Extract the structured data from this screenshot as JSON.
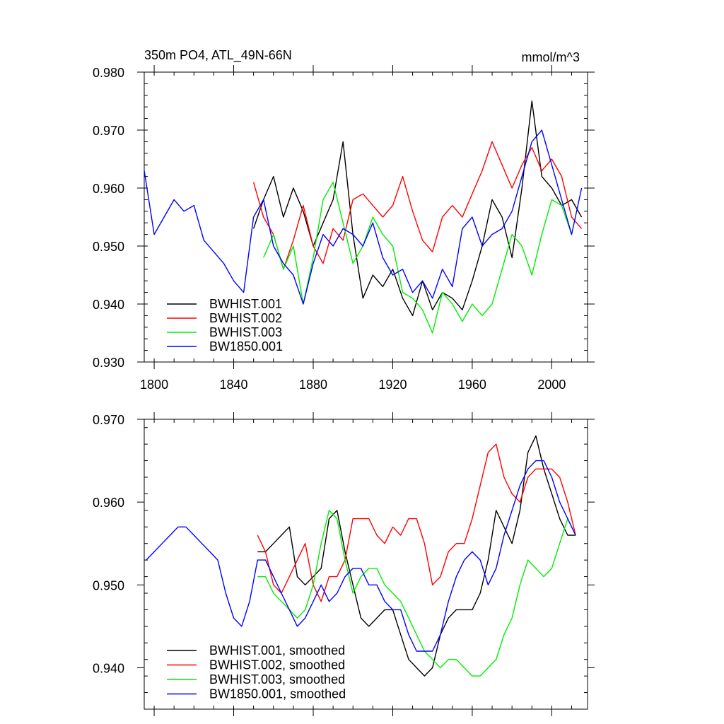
{
  "chart_data": [
    {
      "type": "line",
      "title": "350m PO4, ATL_49N-66N",
      "units": "mmol/m^3",
      "xlabel": "",
      "ylabel": "",
      "xlim": [
        1795,
        2018
      ],
      "ylim": [
        0.93,
        0.98
      ],
      "xticks": [
        1800,
        1840,
        1880,
        1920,
        1960,
        2000
      ],
      "xtick_labels": [
        "1800",
        "1840",
        "1880",
        "1920",
        "1960",
        "2000"
      ],
      "yticks": [
        0.93,
        0.94,
        0.95,
        0.96,
        0.97,
        0.98
      ],
      "ytick_labels": [
        "0.930",
        "0.940",
        "0.950",
        "0.960",
        "0.970",
        "0.980"
      ],
      "legend_position": "bottom-left",
      "series": [
        {
          "name": "BWHIST.001",
          "color": "#000000",
          "x": [
            1850,
            1855,
            1860,
            1865,
            1870,
            1875,
            1880,
            1885,
            1890,
            1895,
            1900,
            1905,
            1910,
            1915,
            1920,
            1925,
            1930,
            1935,
            1940,
            1945,
            1950,
            1955,
            1960,
            1965,
            1970,
            1975,
            1980,
            1985,
            1990,
            1995,
            2000,
            2005,
            2010,
            2015
          ],
          "y": [
            0.953,
            0.958,
            0.962,
            0.955,
            0.96,
            0.956,
            0.95,
            0.954,
            0.958,
            0.968,
            0.952,
            0.941,
            0.945,
            0.943,
            0.946,
            0.941,
            0.938,
            0.944,
            0.939,
            0.942,
            0.941,
            0.939,
            0.944,
            0.95,
            0.958,
            0.955,
            0.948,
            0.96,
            0.975,
            0.962,
            0.96,
            0.957,
            0.958,
            0.955
          ]
        },
        {
          "name": "BWHIST.002",
          "color": "#ff0000",
          "x": [
            1850,
            1855,
            1860,
            1865,
            1870,
            1875,
            1880,
            1885,
            1890,
            1895,
            1900,
            1905,
            1910,
            1915,
            1920,
            1925,
            1930,
            1935,
            1940,
            1945,
            1950,
            1955,
            1960,
            1965,
            1970,
            1975,
            1980,
            1985,
            1990,
            1995,
            2000,
            2005,
            2010,
            2015
          ],
          "y": [
            0.961,
            0.955,
            0.952,
            0.946,
            0.951,
            0.957,
            0.95,
            0.947,
            0.953,
            0.951,
            0.958,
            0.959,
            0.957,
            0.955,
            0.957,
            0.962,
            0.956,
            0.951,
            0.949,
            0.955,
            0.957,
            0.955,
            0.959,
            0.963,
            0.968,
            0.964,
            0.96,
            0.964,
            0.967,
            0.963,
            0.965,
            0.962,
            0.955,
            0.953
          ]
        },
        {
          "name": "BWHIST.003",
          "color": "#00ee00",
          "x": [
            1855,
            1860,
            1865,
            1870,
            1875,
            1880,
            1885,
            1890,
            1895,
            1900,
            1905,
            1910,
            1915,
            1920,
            1925,
            1930,
            1935,
            1940,
            1945,
            1950,
            1955,
            1960,
            1965,
            1970,
            1975,
            1980,
            1985,
            1990,
            1995,
            2000,
            2005,
            2010
          ],
          "y": [
            0.948,
            0.952,
            0.946,
            0.95,
            0.94,
            0.948,
            0.958,
            0.961,
            0.954,
            0.947,
            0.95,
            0.955,
            0.952,
            0.95,
            0.942,
            0.941,
            0.939,
            0.935,
            0.942,
            0.94,
            0.937,
            0.94,
            0.938,
            0.94,
            0.946,
            0.952,
            0.95,
            0.945,
            0.952,
            0.958,
            0.957,
            0.952
          ]
        },
        {
          "name": "BW1850.001",
          "color": "#0000ff",
          "x": [
            1795,
            1800,
            1805,
            1810,
            1815,
            1820,
            1825,
            1830,
            1835,
            1840,
            1845,
            1850,
            1855,
            1860,
            1865,
            1870,
            1875,
            1880,
            1885,
            1890,
            1895,
            1900,
            1905,
            1910,
            1915,
            1920,
            1925,
            1930,
            1935,
            1940,
            1945,
            1950,
            1955,
            1960,
            1965,
            1970,
            1975,
            1980,
            1985,
            1990,
            1995,
            2000,
            2005,
            2010,
            2015
          ],
          "y": [
            0.963,
            0.952,
            0.955,
            0.958,
            0.956,
            0.957,
            0.951,
            0.949,
            0.947,
            0.944,
            0.942,
            0.955,
            0.958,
            0.95,
            0.947,
            0.945,
            0.94,
            0.947,
            0.952,
            0.95,
            0.953,
            0.952,
            0.95,
            0.954,
            0.948,
            0.945,
            0.946,
            0.942,
            0.944,
            0.941,
            0.946,
            0.943,
            0.953,
            0.955,
            0.95,
            0.952,
            0.953,
            0.956,
            0.962,
            0.968,
            0.97,
            0.964,
            0.958,
            0.952,
            0.96
          ]
        }
      ]
    },
    {
      "type": "line",
      "title": "",
      "xlabel": "",
      "ylabel": "",
      "xlim": [
        1795,
        2018
      ],
      "ylim": [
        0.935,
        0.97
      ],
      "xticks": [
        1800,
        1840,
        1880,
        1920,
        1960,
        2000
      ],
      "yticks": [
        0.94,
        0.95,
        0.96,
        0.97
      ],
      "ytick_labels": [
        "0.940",
        "0.950",
        "0.960",
        "0.970"
      ],
      "legend_position": "bottom-left",
      "series": [
        {
          "name": "BWHIST.001, smoothed",
          "color": "#000000",
          "x": [
            1852,
            1856,
            1860,
            1864,
            1868,
            1872,
            1876,
            1880,
            1884,
            1888,
            1892,
            1896,
            1900,
            1904,
            1908,
            1912,
            1916,
            1920,
            1924,
            1928,
            1932,
            1936,
            1940,
            1944,
            1948,
            1952,
            1956,
            1960,
            1964,
            1968,
            1972,
            1976,
            1980,
            1984,
            1988,
            1992,
            1996,
            2000,
            2004,
            2008,
            2012
          ],
          "y": [
            0.954,
            0.954,
            0.955,
            0.956,
            0.957,
            0.951,
            0.95,
            0.951,
            0.952,
            0.958,
            0.959,
            0.954,
            0.95,
            0.946,
            0.945,
            0.946,
            0.947,
            0.947,
            0.944,
            0.941,
            0.94,
            0.939,
            0.94,
            0.944,
            0.946,
            0.947,
            0.947,
            0.947,
            0.949,
            0.953,
            0.959,
            0.957,
            0.955,
            0.959,
            0.966,
            0.968,
            0.964,
            0.961,
            0.958,
            0.956,
            0.956
          ]
        },
        {
          "name": "BWHIST.002, smoothed",
          "color": "#ff0000",
          "x": [
            1852,
            1856,
            1860,
            1864,
            1868,
            1872,
            1876,
            1880,
            1884,
            1888,
            1892,
            1896,
            1900,
            1904,
            1908,
            1912,
            1916,
            1920,
            1924,
            1928,
            1932,
            1936,
            1940,
            1944,
            1948,
            1952,
            1956,
            1960,
            1964,
            1968,
            1972,
            1976,
            1980,
            1984,
            1988,
            1992,
            1996,
            2000,
            2004,
            2008,
            2012
          ],
          "y": [
            0.956,
            0.954,
            0.95,
            0.949,
            0.951,
            0.953,
            0.955,
            0.95,
            0.948,
            0.951,
            0.951,
            0.953,
            0.958,
            0.958,
            0.958,
            0.956,
            0.955,
            0.957,
            0.956,
            0.958,
            0.958,
            0.955,
            0.95,
            0.951,
            0.954,
            0.955,
            0.955,
            0.958,
            0.962,
            0.966,
            0.967,
            0.963,
            0.961,
            0.96,
            0.963,
            0.964,
            0.964,
            0.964,
            0.963,
            0.96,
            0.956
          ]
        },
        {
          "name": "BWHIST.003, smoothed",
          "color": "#00ee00",
          "x": [
            1852,
            1856,
            1860,
            1864,
            1868,
            1872,
            1876,
            1880,
            1884,
            1888,
            1892,
            1896,
            1900,
            1904,
            1908,
            1912,
            1916,
            1920,
            1924,
            1928,
            1932,
            1936,
            1940,
            1944,
            1948,
            1952,
            1956,
            1960,
            1964,
            1968,
            1972,
            1976,
            1980,
            1984,
            1988,
            1992,
            1996,
            2000,
            2004,
            2008,
            2010
          ],
          "y": [
            0.951,
            0.951,
            0.949,
            0.948,
            0.947,
            0.946,
            0.947,
            0.95,
            0.955,
            0.959,
            0.958,
            0.953,
            0.949,
            0.951,
            0.952,
            0.952,
            0.95,
            0.949,
            0.948,
            0.946,
            0.944,
            0.942,
            0.941,
            0.94,
            0.941,
            0.941,
            0.94,
            0.939,
            0.939,
            0.94,
            0.941,
            0.944,
            0.946,
            0.95,
            0.953,
            0.952,
            0.951,
            0.952,
            0.955,
            0.958,
            0.957
          ]
        },
        {
          "name": "BW1850.001, smoothed",
          "color": "#0000ff",
          "x": [
            1796,
            1800,
            1804,
            1808,
            1812,
            1816,
            1820,
            1824,
            1828,
            1832,
            1836,
            1840,
            1844,
            1848,
            1852,
            1856,
            1860,
            1864,
            1868,
            1872,
            1876,
            1880,
            1884,
            1888,
            1892,
            1896,
            1900,
            1904,
            1908,
            1912,
            1916,
            1920,
            1924,
            1928,
            1932,
            1936,
            1940,
            1944,
            1948,
            1952,
            1956,
            1960,
            1964,
            1968,
            1972,
            1976,
            1980,
            1984,
            1988,
            1992,
            1996,
            2000,
            2004,
            2008,
            2012
          ],
          "y": [
            0.953,
            0.954,
            0.955,
            0.956,
            0.957,
            0.957,
            0.956,
            0.955,
            0.954,
            0.953,
            0.949,
            0.946,
            0.945,
            0.948,
            0.953,
            0.953,
            0.951,
            0.949,
            0.947,
            0.945,
            0.946,
            0.948,
            0.95,
            0.948,
            0.949,
            0.951,
            0.952,
            0.952,
            0.95,
            0.95,
            0.948,
            0.947,
            0.947,
            0.944,
            0.942,
            0.942,
            0.942,
            0.944,
            0.948,
            0.951,
            0.953,
            0.954,
            0.953,
            0.95,
            0.952,
            0.956,
            0.959,
            0.962,
            0.964,
            0.965,
            0.965,
            0.963,
            0.96,
            0.958,
            0.956
          ]
        }
      ]
    }
  ]
}
